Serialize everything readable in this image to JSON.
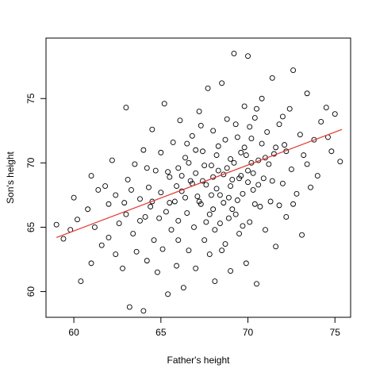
{
  "chart_data": {
    "type": "scatter",
    "x_label": "Father's height",
    "y_label": "Son's height",
    "xlim": [
      58.4,
      75.9
    ],
    "ylim": [
      58.0,
      79.7
    ],
    "xticks": [
      60,
      65,
      70,
      75
    ],
    "yticks": [
      60,
      65,
      70,
      75
    ],
    "point_color": "#000000",
    "x": [
      59.0,
      59.4,
      59.8,
      60.0,
      60.2,
      60.4,
      60.8,
      61.0,
      61.0,
      61.2,
      61.4,
      61.6,
      61.8,
      62.0,
      62.0,
      62.2,
      62.4,
      62.4,
      62.6,
      62.8,
      63.0,
      63.0,
      63.1,
      63.2,
      63.4,
      63.5,
      63.6,
      63.8,
      64.0,
      64.0,
      64.1,
      64.2,
      64.3,
      64.4,
      64.5,
      64.6,
      64.7,
      64.8,
      65.0,
      65.0,
      65.1,
      65.2,
      65.3,
      65.4,
      65.5,
      65.6,
      65.7,
      65.8,
      65.9,
      66.0,
      66.0,
      66.1,
      66.2,
      66.3,
      66.4,
      66.5,
      66.6,
      66.7,
      66.8,
      66.9,
      67.0,
      67.0,
      67.1,
      67.2,
      67.3,
      67.4,
      67.5,
      67.6,
      67.7,
      67.8,
      67.9,
      68.0,
      68.0,
      68.1,
      68.2,
      68.3,
      68.4,
      68.5,
      68.6,
      68.7,
      68.8,
      68.9,
      69.0,
      69.0,
      69.1,
      69.2,
      69.3,
      69.4,
      69.5,
      69.6,
      69.7,
      69.8,
      69.9,
      70.0,
      70.0,
      70.1,
      70.2,
      70.3,
      70.4,
      70.5,
      70.6,
      70.7,
      70.8,
      70.9,
      71.0,
      71.1,
      71.2,
      71.3,
      71.4,
      71.5,
      71.6,
      71.8,
      72.0,
      72.1,
      72.2,
      72.4,
      72.5,
      72.6,
      72.8,
      73.0,
      73.1,
      73.2,
      73.4,
      73.6,
      73.8,
      74.0,
      74.2,
      74.5,
      74.8,
      75.0,
      75.3,
      66.2,
      66.8,
      67.2,
      67.5,
      67.8,
      68.0,
      68.2,
      68.4,
      68.6,
      68.8,
      69.0,
      69.2,
      69.4,
      69.6,
      69.8,
      70.0,
      70.2,
      70.4,
      70.6,
      70.8,
      67.0,
      67.4,
      67.9,
      68.3,
      68.7,
      69.1,
      69.5,
      69.9,
      70.3,
      71.0,
      65.5,
      65.9,
      66.4,
      66.6,
      67.6,
      68.1,
      68.9,
      69.3,
      70.1,
      71.4,
      71.8,
      72.2,
      64.5,
      64.9,
      65.4,
      66.0,
      63.8,
      64.2,
      62.9,
      63.3,
      71.6,
      72.0,
      70.5,
      69.7,
      68.5,
      67.3,
      66.5,
      72.6,
      73.4,
      74.6
    ],
    "y": [
      65.2,
      64.1,
      64.8,
      67.3,
      65.6,
      60.8,
      66.4,
      62.2,
      69.0,
      65.0,
      67.9,
      63.6,
      68.2,
      64.2,
      66.8,
      70.2,
      62.9,
      67.5,
      65.3,
      61.8,
      74.3,
      66.0,
      68.7,
      58.8,
      64.5,
      69.9,
      63.1,
      67.2,
      58.5,
      71.0,
      65.8,
      62.4,
      68.1,
      66.6,
      72.6,
      64.0,
      69.4,
      61.5,
      67.7,
      70.8,
      63.3,
      74.6,
      66.2,
      59.8,
      68.9,
      64.8,
      71.6,
      67.0,
      62.0,
      69.6,
      65.5,
      73.3,
      67.8,
      60.3,
      70.4,
      66.1,
      63.2,
      68.6,
      72.1,
      65.0,
      69.2,
      61.8,
      67.4,
      74.0,
      66.8,
      70.9,
      64.0,
      68.3,
      75.8,
      62.9,
      69.8,
      66.4,
      72.5,
      60.8,
      68.0,
      71.3,
      65.3,
      76.2,
      69.1,
      63.7,
      73.4,
      67.3,
      70.3,
      61.6,
      68.7,
      78.5,
      66.0,
      72.0,
      64.5,
      70.8,
      67.6,
      74.4,
      62.2,
      78.3,
      69.4,
      65.4,
      71.9,
      67.9,
      73.5,
      60.6,
      70.2,
      66.6,
      75.0,
      68.8,
      64.8,
      72.4,
      69.9,
      67.0,
      76.6,
      70.7,
      63.5,
      73.0,
      68.4,
      71.4,
      65.8,
      74.2,
      69.5,
      77.2,
      67.6,
      72.2,
      64.4,
      70.6,
      75.4,
      68.1,
      71.8,
      69.0,
      73.2,
      74.3,
      70.9,
      73.8,
      70.1,
      69.0,
      68.4,
      67.0,
      69.8,
      66.0,
      68.9,
      70.6,
      67.5,
      66.9,
      69.6,
      68.2,
      70.0,
      67.1,
      69.0,
      71.2,
      68.5,
      70.0,
      66.8,
      68.3,
      71.5,
      71.0,
      68.6,
      67.5,
      69.4,
      71.8,
      66.4,
      68.8,
      70.6,
      69.2,
      70.4,
      66.9,
      68.2,
      67.3,
      70.0,
      65.4,
      64.8,
      65.7,
      73.0,
      72.8,
      68.6,
      66.7,
      70.9,
      67.0,
      65.7,
      69.3,
      64.0,
      65.5,
      69.6,
      66.9,
      67.9,
      71.2,
      73.6,
      74.2,
      65.1,
      63.2,
      72.9,
      71.5,
      66.8,
      69.9,
      72.0
    ],
    "fit_line": {
      "color": "#e0362e",
      "x": [
        59.0,
        75.4
      ],
      "y": [
        64.2,
        72.6
      ]
    }
  }
}
